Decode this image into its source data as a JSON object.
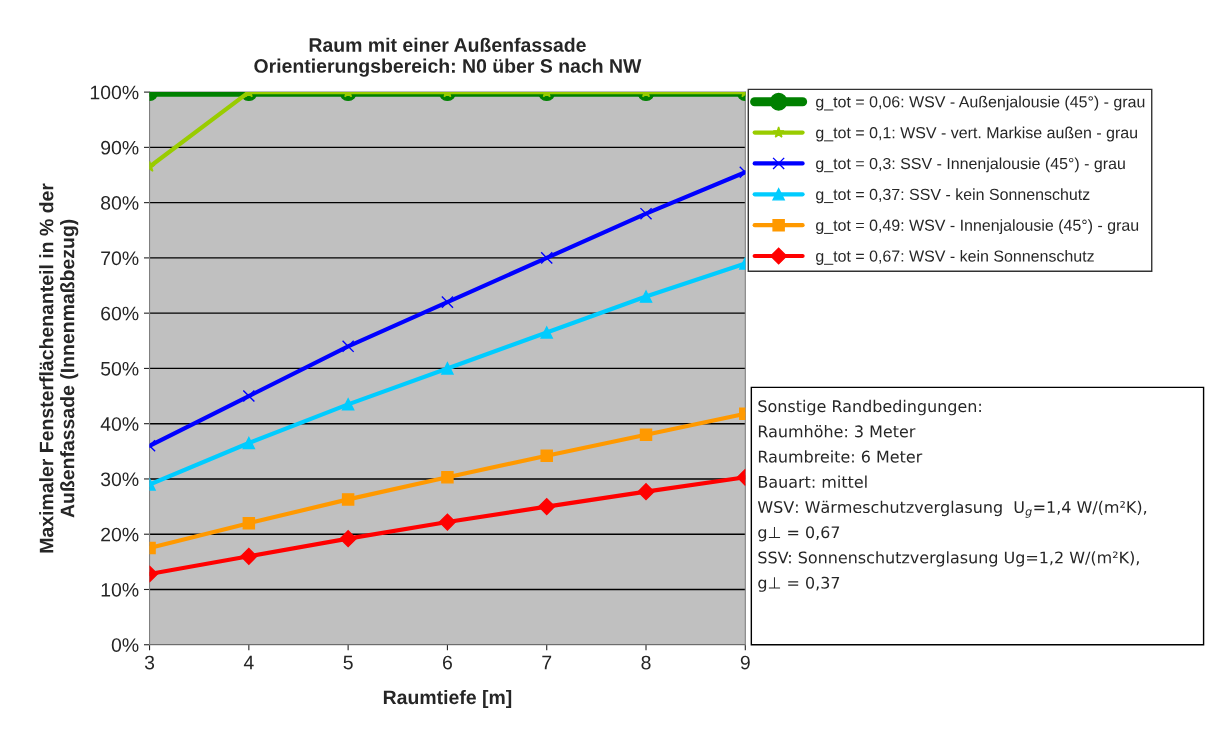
{
  "chart_data": {
    "type": "line",
    "title": "Raum mit einer Außenfassade\nOrientierungsbereich: N0 über S nach NW",
    "xlabel": "Raumtiefe [m]",
    "ylabel": "Maximaler Fensterflächenanteil in % der\nAußenfassade (Innenmaßbezug)",
    "x": [
      3,
      4,
      5,
      6,
      7,
      8,
      9
    ],
    "xlim": [
      3,
      9
    ],
    "xticks": [
      3,
      4,
      5,
      6,
      7,
      8,
      9
    ],
    "ylim": [
      0,
      100
    ],
    "yticks": [
      {
        "value": 0,
        "label": "0%"
      },
      {
        "value": 10,
        "label": "10%"
      },
      {
        "value": 20,
        "label": "20%"
      },
      {
        "value": 30,
        "label": "30%"
      },
      {
        "value": 40,
        "label": "40%"
      },
      {
        "value": 50,
        "label": "50%"
      },
      {
        "value": 60,
        "label": "60%"
      },
      {
        "value": 70,
        "label": "70%"
      },
      {
        "value": 80,
        "label": "80%"
      },
      {
        "value": 90,
        "label": "90%"
      },
      {
        "value": 100,
        "label": "100%"
      }
    ],
    "grid": "y",
    "legend": "right",
    "line_style": "solid",
    "series": [
      {
        "name": "g_tot = 0,06: WSV - Außenjalousie (45°) - grau",
        "color": "#008000",
        "marker": "circle",
        "values": [
          100,
          100,
          100,
          100,
          100,
          100,
          100
        ]
      },
      {
        "name": "g_tot = 0,1: WSV - vert. Markise außen - grau",
        "color": "#99cc00",
        "marker": "star",
        "values": [
          86.5,
          100,
          100,
          100,
          100,
          100,
          100
        ]
      },
      {
        "name": "g_tot = 0,3: SSV - Innenjalousie (45°) - grau",
        "color": "#0000ff",
        "marker": "cross",
        "values": [
          36,
          45,
          54,
          62,
          70,
          78,
          85.5
        ]
      },
      {
        "name": "g_tot = 0,37: SSV - kein Sonnenschutz",
        "color": "#00ccff",
        "marker": "triangle",
        "values": [
          29,
          36.5,
          43.5,
          50,
          56.5,
          63,
          69
        ]
      },
      {
        "name": "g_tot = 0,49: WSV - Innenjalousie (45°) - grau",
        "color": "#ff9900",
        "marker": "square",
        "values": [
          17.5,
          22,
          26.3,
          30.3,
          34.2,
          38,
          41.8
        ]
      },
      {
        "name": "g_tot = 0,67: WSV - kein Sonnenschutz",
        "color": "#ff0000",
        "marker": "diamond",
        "values": [
          12.8,
          16,
          19.2,
          22.2,
          25,
          27.7,
          30.3
        ]
      }
    ],
    "annotations": [
      "Sonstige Randbedingungen:",
      "Raumhöhe: 3 Meter",
      "Raumbreite: 6 Meter",
      "Bauart: mittel",
      "WSV: Wärmeschutzverglasung  U$_{g}$=1,4 W/(m²K),",
      "g⊥ = 0,67",
      "SSV: Sonnenschutzverglasung Ug=1,2 W/(m²K),",
      "g⊥ = 0,37"
    ]
  }
}
